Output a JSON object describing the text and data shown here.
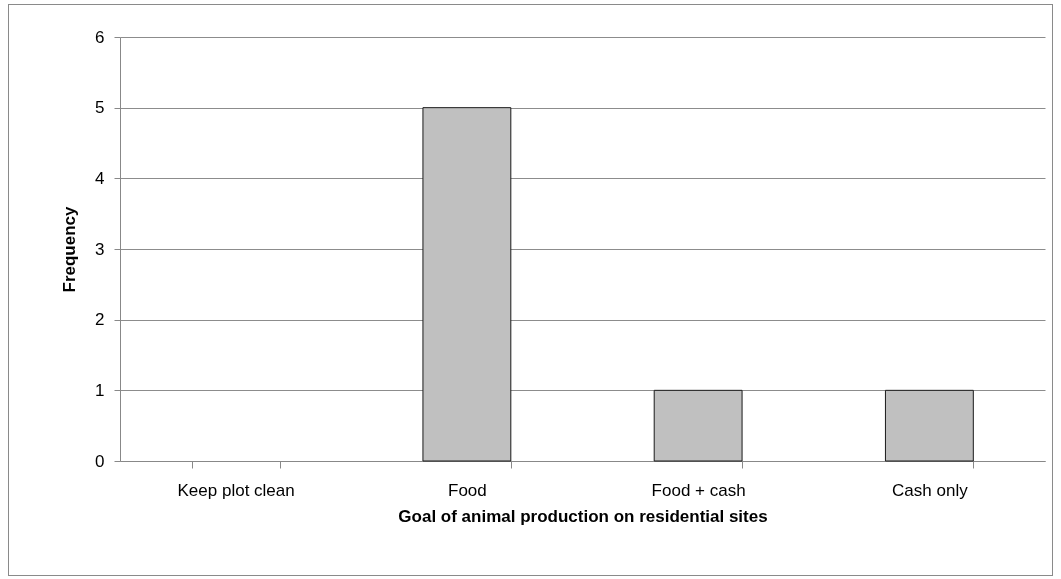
{
  "chart_data": {
    "type": "bar",
    "xlabel": "Goal of animal production on residential sites",
    "ylabel": "Frequency",
    "categories": [
      "Keep plot clean",
      "Food",
      "Food + cash",
      "Cash only"
    ],
    "values": [
      0,
      5,
      1,
      1
    ],
    "color": "#c0c0c0",
    "ylim": [
      0,
      6
    ],
    "yticks": [
      0,
      1,
      2,
      3,
      4,
      5,
      6
    ],
    "grid": "y"
  }
}
